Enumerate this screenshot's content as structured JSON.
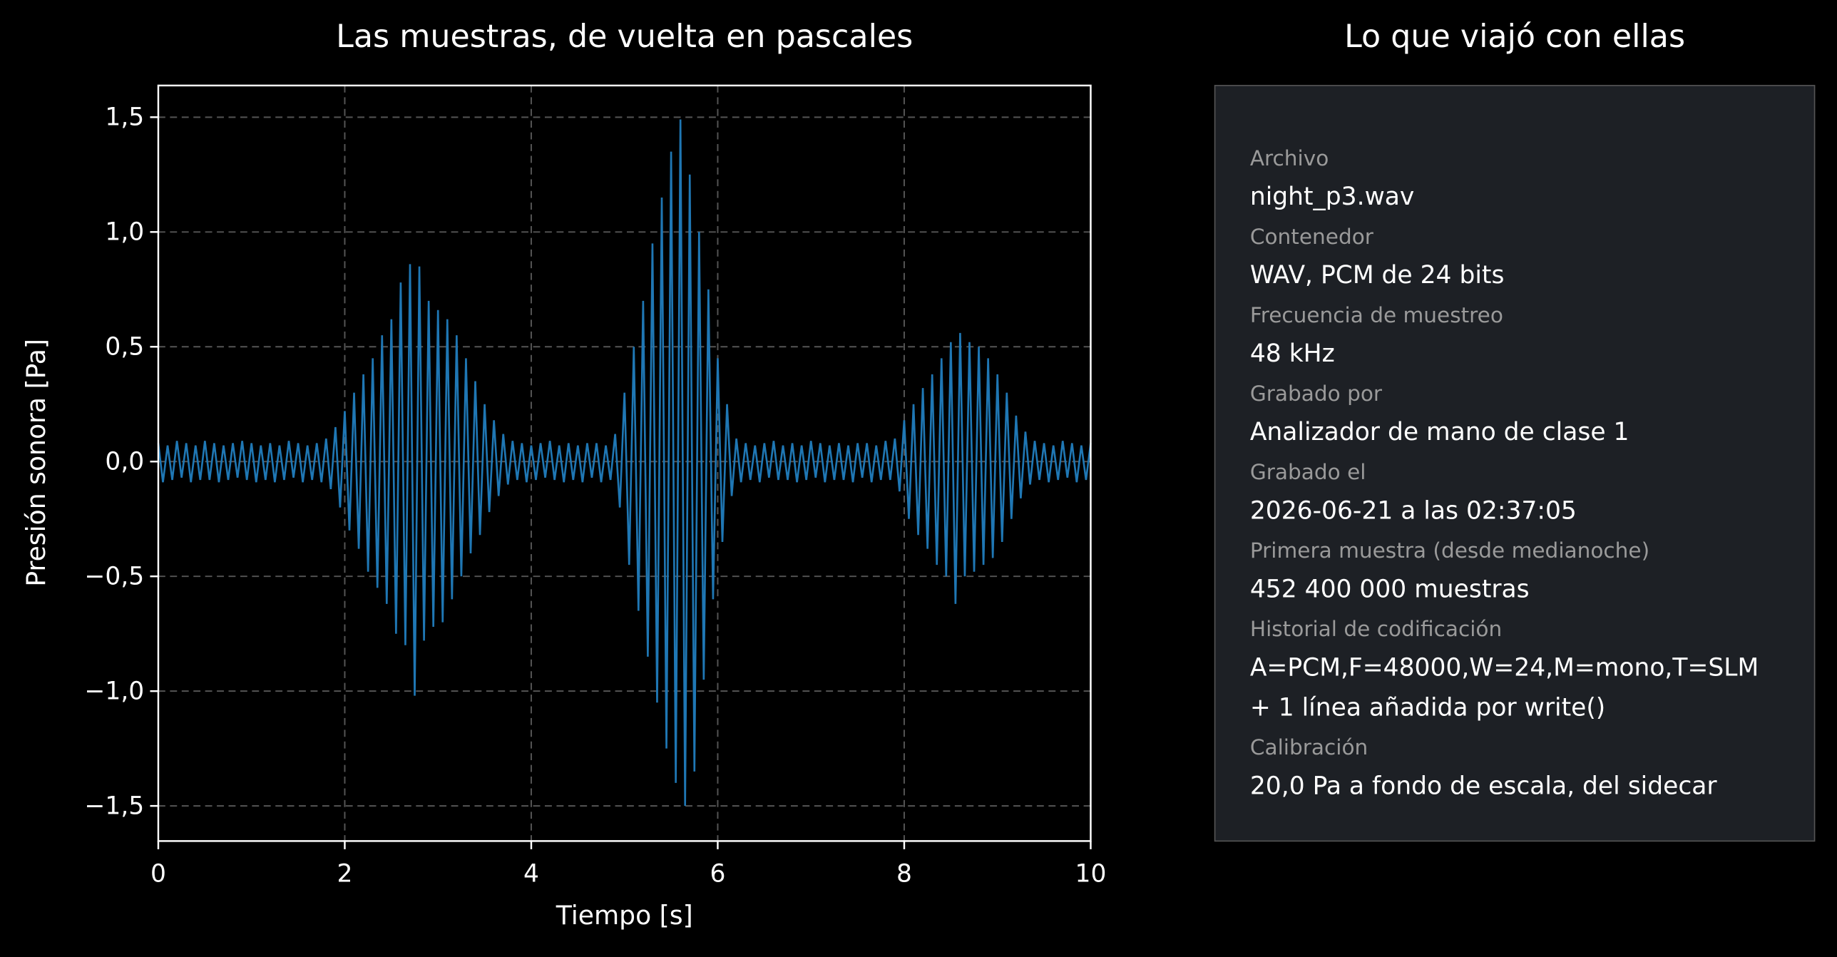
{
  "chart_data": {
    "type": "line",
    "title": "Las muestras, de vuelta en pascales",
    "xlabel": "Tiempo [s]",
    "ylabel": "Presión sonora [Pa]",
    "xlim": [
      0,
      10
    ],
    "ylim": [
      -1.653,
      1.638
    ],
    "xticks": [
      0,
      2,
      4,
      6,
      8,
      10
    ],
    "yticks": [
      {
        "value": 1.5,
        "label": "1,5"
      },
      {
        "value": 1.0,
        "label": "1,0"
      },
      {
        "value": 0.5,
        "label": "0,5"
      },
      {
        "value": 0.0,
        "label": "0,0"
      },
      {
        "value": -0.5,
        "label": "−0,5"
      },
      {
        "value": -1.0,
        "label": "−1,0"
      },
      {
        "value": -1.5,
        "label": "−1,5"
      }
    ],
    "grid": true,
    "x": [
      0,
      0.05,
      0.1,
      0.15,
      0.2,
      0.25,
      0.3,
      0.35,
      0.4,
      0.45,
      0.5,
      0.55,
      0.6,
      0.65,
      0.7,
      0.75,
      0.8,
      0.85,
      0.9,
      0.95,
      1,
      1.05,
      1.1,
      1.15,
      1.2,
      1.25,
      1.3,
      1.35,
      1.4,
      1.45,
      1.5,
      1.55,
      1.6,
      1.65,
      1.7,
      1.75,
      1.8,
      1.85,
      1.9,
      1.95,
      2,
      2.05,
      2.1,
      2.15,
      2.2,
      2.25,
      2.3,
      2.35,
      2.4,
      2.45,
      2.5,
      2.55,
      2.6,
      2.65,
      2.7,
      2.75,
      2.8,
      2.85,
      2.9,
      2.95,
      3,
      3.05,
      3.1,
      3.15,
      3.2,
      3.25,
      3.3,
      3.35,
      3.4,
      3.45,
      3.5,
      3.55,
      3.6,
      3.65,
      3.7,
      3.75,
      3.8,
      3.85,
      3.9,
      3.95,
      4,
      4.05,
      4.1,
      4.15,
      4.2,
      4.25,
      4.3,
      4.35,
      4.4,
      4.45,
      4.5,
      4.55,
      4.6,
      4.65,
      4.7,
      4.75,
      4.8,
      4.85,
      4.9,
      4.95,
      5,
      5.05,
      5.1,
      5.15,
      5.2,
      5.25,
      5.3,
      5.35,
      5.4,
      5.45,
      5.5,
      5.55,
      5.6,
      5.65,
      5.7,
      5.75,
      5.8,
      5.85,
      5.9,
      5.95,
      6,
      6.05,
      6.1,
      6.15,
      6.2,
      6.25,
      6.3,
      6.35,
      6.4,
      6.45,
      6.5,
      6.55,
      6.6,
      6.65,
      6.7,
      6.75,
      6.8,
      6.85,
      6.9,
      6.95,
      7,
      7.05,
      7.1,
      7.15,
      7.2,
      7.25,
      7.3,
      7.35,
      7.4,
      7.45,
      7.5,
      7.55,
      7.6,
      7.65,
      7.7,
      7.75,
      7.8,
      7.85,
      7.9,
      7.95,
      8,
      8.05,
      8.1,
      8.15,
      8.2,
      8.25,
      8.3,
      8.35,
      8.4,
      8.45,
      8.5,
      8.55,
      8.6,
      8.65,
      8.7,
      8.75,
      8.8,
      8.85,
      8.9,
      8.95,
      9,
      9.05,
      9.1,
      9.15,
      9.2,
      9.25,
      9.3,
      9.35,
      9.4,
      9.45,
      9.5,
      9.55,
      9.6,
      9.65,
      9.7,
      9.75,
      9.8,
      9.85,
      9.9,
      9.95,
      10
    ],
    "series": [
      {
        "color": "#1f77b4",
        "values": [
          0.08,
          -0.09,
          0.07,
          -0.08,
          0.09,
          -0.07,
          0.08,
          -0.09,
          0.07,
          -0.08,
          0.09,
          -0.08,
          0.08,
          -0.09,
          0.07,
          -0.08,
          0.08,
          -0.07,
          0.09,
          -0.08,
          0.08,
          -0.09,
          0.07,
          -0.08,
          0.08,
          -0.09,
          0.07,
          -0.08,
          0.09,
          -0.07,
          0.08,
          -0.09,
          0.07,
          -0.08,
          0.08,
          -0.09,
          0.1,
          -0.12,
          0.15,
          -0.2,
          0.22,
          -0.3,
          0.3,
          -0.38,
          0.38,
          -0.48,
          0.45,
          -0.55,
          0.55,
          -0.62,
          0.62,
          -0.75,
          0.78,
          -0.8,
          0.86,
          -1.02,
          0.85,
          -0.78,
          0.7,
          -0.72,
          0.66,
          -0.7,
          0.62,
          -0.6,
          0.55,
          -0.5,
          0.45,
          -0.4,
          0.35,
          -0.32,
          0.25,
          -0.22,
          0.18,
          -0.15,
          0.12,
          -0.1,
          0.09,
          -0.08,
          0.08,
          -0.09,
          0.07,
          -0.08,
          0.08,
          -0.07,
          0.09,
          -0.08,
          0.07,
          -0.09,
          0.08,
          -0.08,
          0.07,
          -0.09,
          0.08,
          -0.07,
          0.08,
          -0.09,
          0.07,
          -0.08,
          0.12,
          -0.2,
          0.3,
          -0.45,
          0.5,
          -0.65,
          0.7,
          -0.85,
          0.95,
          -1.05,
          1.15,
          -1.25,
          1.35,
          -1.4,
          1.49,
          -1.5,
          1.25,
          -1.35,
          1.0,
          -0.95,
          0.75,
          -0.6,
          0.45,
          -0.35,
          0.25,
          -0.15,
          0.1,
          -0.09,
          0.08,
          -0.08,
          0.07,
          -0.09,
          0.08,
          -0.07,
          0.09,
          -0.08,
          0.07,
          -0.08,
          0.08,
          -0.09,
          0.07,
          -0.08,
          0.09,
          -0.07,
          0.08,
          -0.09,
          0.07,
          -0.08,
          0.08,
          -0.08,
          0.07,
          -0.09,
          0.08,
          -0.07,
          0.08,
          -0.09,
          0.07,
          -0.08,
          0.09,
          -0.08,
          0.1,
          -0.13,
          0.18,
          -0.25,
          0.25,
          -0.32,
          0.32,
          -0.38,
          0.38,
          -0.45,
          0.45,
          -0.5,
          0.52,
          -0.62,
          0.56,
          -0.5,
          0.52,
          -0.48,
          0.5,
          -0.45,
          0.45,
          -0.42,
          0.38,
          -0.35,
          0.3,
          -0.25,
          0.2,
          -0.16,
          0.13,
          -0.1,
          0.09,
          -0.08,
          0.08,
          -0.09,
          0.07,
          -0.08,
          0.09,
          -0.07,
          0.08,
          -0.09,
          0.07,
          -0.08,
          0.08
        ]
      }
    ]
  },
  "panel": {
    "title": "Lo que viajó con ellas",
    "fields": [
      {
        "label": "Archivo",
        "lines": [
          "night_p3.wav"
        ]
      },
      {
        "label": "Contenedor",
        "lines": [
          "WAV, PCM de 24 bits"
        ]
      },
      {
        "label": "Frecuencia de muestreo",
        "lines": [
          "48 kHz"
        ]
      },
      {
        "label": "Grabado por",
        "lines": [
          "Analizador de mano de clase 1"
        ]
      },
      {
        "label": "Grabado el",
        "lines": [
          "2026-06-21 a las 02:37:05"
        ]
      },
      {
        "label": "Primera muestra (desde medianoche)",
        "lines": [
          "452 400 000 muestras"
        ]
      },
      {
        "label": "Historial de codificación",
        "lines": [
          "A=PCM,F=48000,W=24,M=mono,T=SLM",
          "+ 1 línea añadida por write()"
        ]
      },
      {
        "label": "Calibración",
        "lines": [
          "20,0 Pa a fondo de escala, del sidecar"
        ]
      }
    ]
  }
}
